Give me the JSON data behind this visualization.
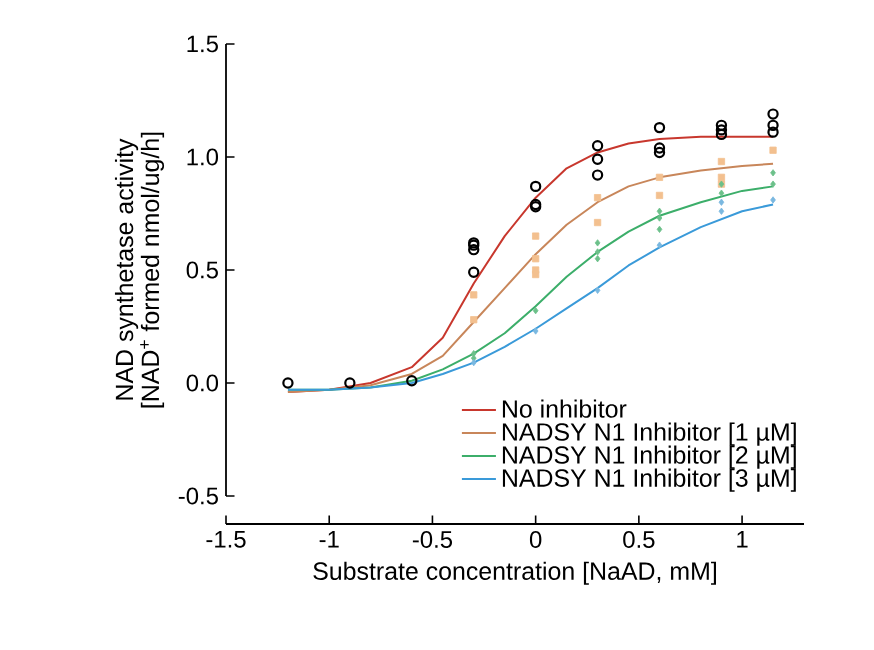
{
  "chart_data": {
    "type": "line",
    "xlabel": "Substrate concentration [NaAD, mM]",
    "ylabel": [
      "NAD synthetase activity",
      "[NAD$^{+}$ formed nmol/ug/h]"
    ],
    "xlim": [
      -1.5,
      1.3
    ],
    "xticks": [
      -1.5,
      -1,
      -0.5,
      0,
      0.5,
      1
    ],
    "ylim": [
      -0.5,
      1.5
    ],
    "yticks": [
      -0.5,
      {
        "value": 0,
        "label": "0.0"
      },
      0.5,
      {
        "value": 1,
        "label": "1.0"
      },
      1.5
    ],
    "legend": "bottom right",
    "series": [
      {
        "name": "No inhibitor",
        "color": "#c8372d",
        "x": [
          -1.2,
          -1.0,
          -0.8,
          -0.6,
          -0.45,
          -0.3,
          -0.15,
          0,
          0.15,
          0.3,
          0.45,
          0.6,
          0.8,
          1.0,
          1.15
        ],
        "values": [
          -0.04,
          -0.03,
          0.0,
          0.07,
          0.2,
          0.44,
          0.65,
          0.82,
          0.95,
          1.02,
          1.06,
          1.08,
          1.09,
          1.09,
          1.09
        ]
      },
      {
        "name": "NADSY N1 Inhibitor [1 µM]",
        "color": "#c8865a",
        "x": [
          -1.2,
          -1.0,
          -0.8,
          -0.6,
          -0.45,
          -0.3,
          -0.15,
          0,
          0.15,
          0.3,
          0.45,
          0.6,
          0.8,
          1.0,
          1.15
        ],
        "values": [
          -0.04,
          -0.03,
          -0.01,
          0.04,
          0.12,
          0.27,
          0.42,
          0.57,
          0.7,
          0.8,
          0.87,
          0.91,
          0.94,
          0.96,
          0.97
        ]
      },
      {
        "name": "NADSY N1 Inhibitor [2 µM]",
        "color": "#3cae6a",
        "x": [
          -1.2,
          -1.0,
          -0.8,
          -0.6,
          -0.45,
          -0.3,
          -0.15,
          0,
          0.15,
          0.3,
          0.45,
          0.6,
          0.8,
          1.0,
          1.15
        ],
        "values": [
          -0.03,
          -0.03,
          -0.02,
          0.01,
          0.06,
          0.13,
          0.22,
          0.34,
          0.47,
          0.58,
          0.67,
          0.74,
          0.8,
          0.85,
          0.87
        ]
      },
      {
        "name": "NADSY N1 Inhibitor [3 µM]",
        "color": "#3a9ad9",
        "x": [
          -1.2,
          -1.0,
          -0.8,
          -0.6,
          -0.45,
          -0.3,
          -0.15,
          0,
          0.15,
          0.3,
          0.45,
          0.6,
          0.8,
          1.0,
          1.15
        ],
        "values": [
          -0.03,
          -0.03,
          -0.02,
          0.0,
          0.04,
          0.09,
          0.16,
          0.24,
          0.33,
          0.42,
          0.52,
          0.6,
          0.69,
          0.76,
          0.79
        ]
      },
      {
        "type": "scatter",
        "color": "#f3c08f",
        "marker": "square",
        "x": [
          -0.3,
          -0.3,
          0,
          0,
          0,
          0,
          0.3,
          0.3,
          0.6,
          0.6,
          0.9,
          0.9,
          0.9,
          1.15
        ],
        "values": [
          0.39,
          0.28,
          0.65,
          0.55,
          0.5,
          0.48,
          0.82,
          0.71,
          0.91,
          0.83,
          0.98,
          0.91,
          0.88,
          1.03
        ]
      },
      {
        "type": "scatter",
        "color": "#6cc08a",
        "marker": "diamond",
        "x": [
          -0.3,
          -0.3,
          0,
          0.3,
          0.3,
          0.3,
          0.6,
          0.6,
          0.6,
          0.9,
          0.9,
          1.15,
          1.15
        ],
        "values": [
          0.13,
          0.11,
          0.32,
          0.62,
          0.58,
          0.55,
          0.76,
          0.73,
          0.68,
          0.88,
          0.84,
          0.93,
          0.88
        ]
      },
      {
        "type": "scatter",
        "color": "#7ab8e0",
        "marker": "diamond",
        "x": [
          -0.3,
          0,
          0.3,
          0.6,
          0.9,
          0.9,
          1.15
        ],
        "values": [
          0.09,
          0.23,
          0.41,
          0.61,
          0.8,
          0.76,
          0.81
        ]
      },
      {
        "type": "scatter",
        "color": "#000000",
        "marker": "circle",
        "x": [
          -1.2,
          -0.9,
          -0.6,
          -0.3,
          -0.3,
          -0.3,
          -0.3,
          0,
          0,
          0,
          0.3,
          0.3,
          0.3,
          0.6,
          0.6,
          0.6,
          0.9,
          0.9,
          0.9,
          1.15,
          1.15,
          1.15
        ],
        "values": [
          0,
          0,
          0.01,
          0.49,
          0.59,
          0.61,
          0.62,
          0.87,
          0.79,
          0.78,
          1.05,
          0.99,
          0.92,
          1.13,
          1.04,
          1.02,
          1.14,
          1.12,
          1.1,
          1.19,
          1.14,
          1.11
        ]
      }
    ]
  }
}
